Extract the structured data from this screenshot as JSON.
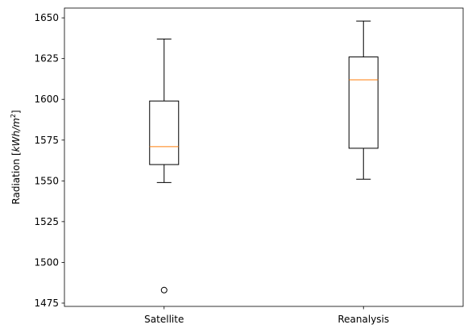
{
  "chart_data": {
    "type": "boxplot",
    "ylabel": "Radiation [kWh/m²]",
    "ylabel_parts": {
      "prefix": "Radiation [",
      "unit_base": "kWh/m",
      "unit_exp": "2",
      "suffix": "]"
    },
    "ylim": [
      1473,
      1656
    ],
    "yticks": [
      1475,
      1500,
      1525,
      1550,
      1575,
      1600,
      1625,
      1650
    ],
    "categories": [
      "Satellite",
      "Reanalysis"
    ],
    "boxes": [
      {
        "label": "Satellite",
        "whisker_low": 1549,
        "q1": 1560,
        "median": 1571,
        "q3": 1599,
        "whisker_high": 1637,
        "outliers": [
          1483
        ]
      },
      {
        "label": "Reanalysis",
        "whisker_low": 1551,
        "q1": 1570,
        "median": 1612,
        "q3": 1626,
        "whisker_high": 1648,
        "outliers": []
      }
    ],
    "colors": {
      "box": "#000000",
      "median": "#ff7f0e"
    },
    "grid": false
  }
}
